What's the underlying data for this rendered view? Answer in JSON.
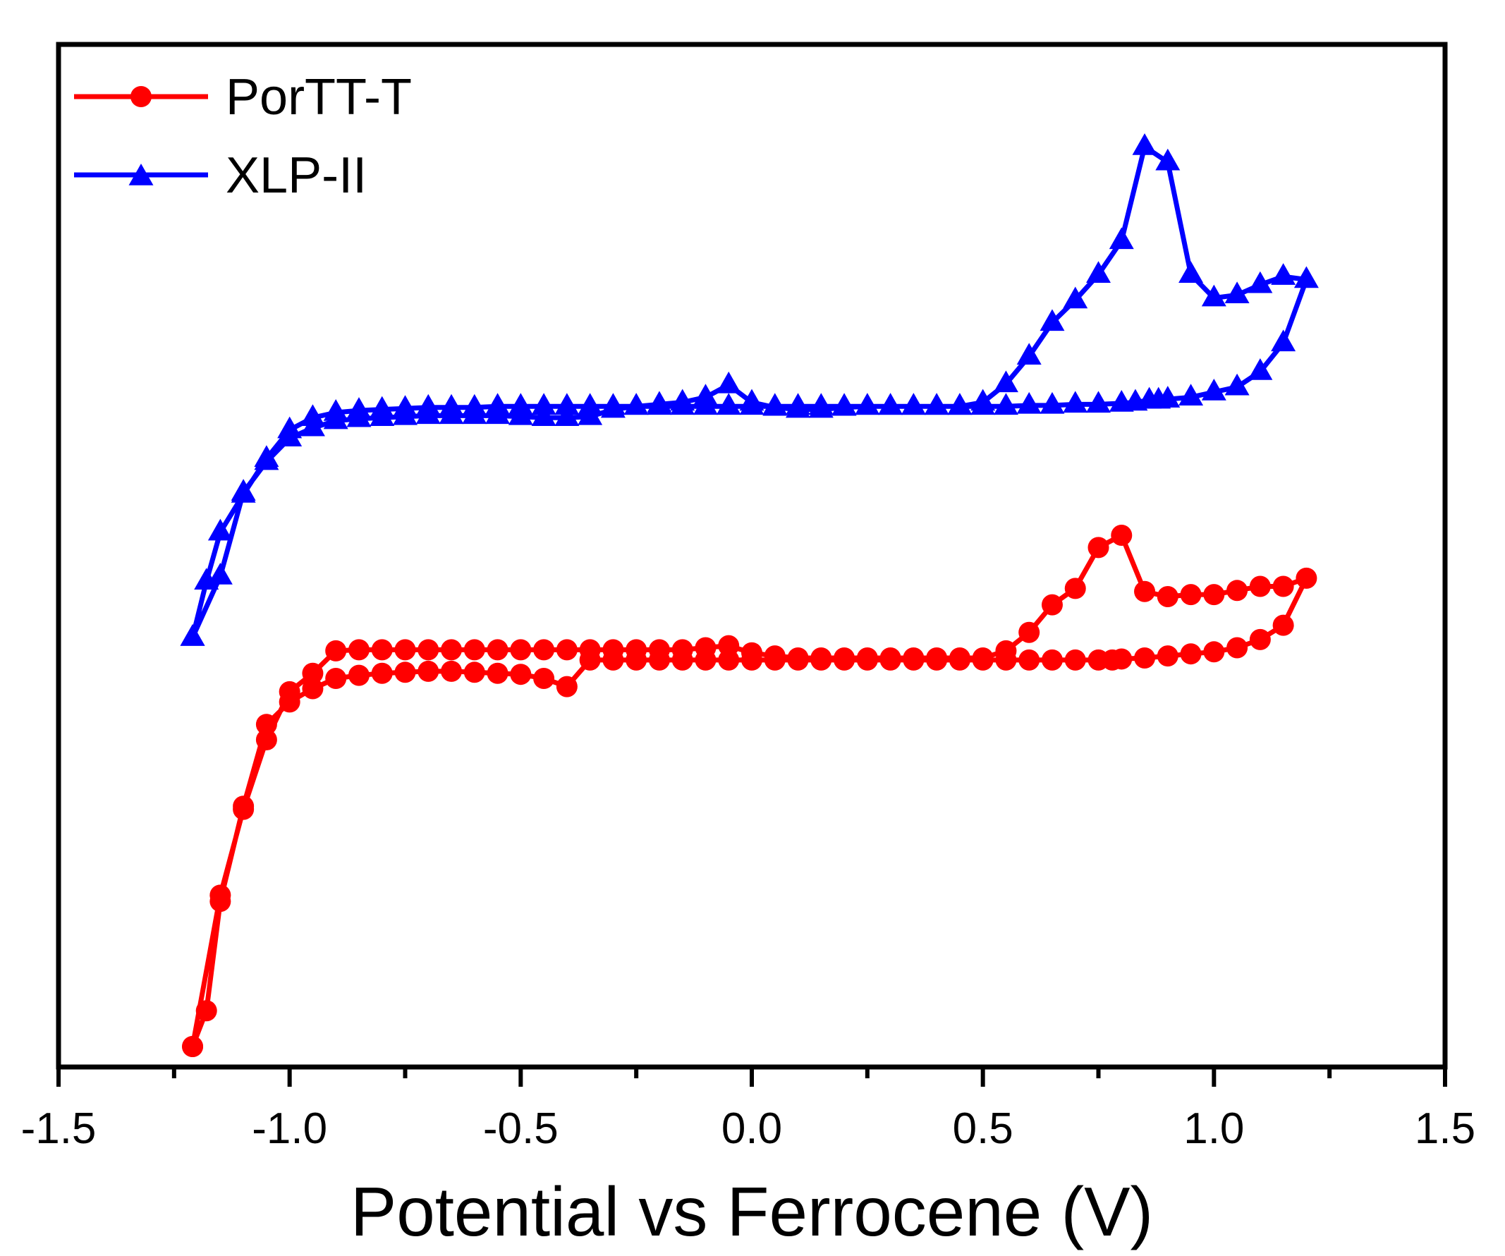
{
  "chart_data": {
    "type": "line",
    "title": "",
    "xlabel": "Potential vs Ferrocene (V)",
    "ylabel": "",
    "xlim": [
      -1.5,
      1.5
    ],
    "ylim": [
      0,
      1
    ],
    "xticks": [
      "-1.5",
      "-1.0",
      "-0.5",
      "0.0",
      "0.5",
      "1.0",
      "1.5"
    ],
    "xtick_values": [
      -1.5,
      -1.0,
      -0.5,
      0.0,
      0.5,
      1.0,
      1.5
    ],
    "minor_xticks": [
      -1.25,
      -0.75,
      -0.25,
      0.25,
      0.75,
      1.25
    ],
    "yticks": [],
    "grid": false,
    "legend_position": "top-left",
    "series": [
      {
        "name": "PorTT-T",
        "color": "#ff0000",
        "marker": "circle",
        "x": [
          -1.21,
          -1.18,
          -1.15,
          -1.1,
          -1.05,
          -1.0,
          -0.95,
          -0.9,
          -0.85,
          -0.8,
          -0.75,
          -0.7,
          -0.65,
          -0.6,
          -0.55,
          -0.5,
          -0.45,
          -0.4,
          -0.35,
          -0.3,
          -0.25,
          -0.2,
          -0.15,
          -0.1,
          -0.05,
          0.0,
          0.05,
          0.1,
          0.15,
          0.2,
          0.25,
          0.3,
          0.35,
          0.4,
          0.45,
          0.5,
          0.55,
          0.6,
          0.65,
          0.7,
          0.75,
          0.78,
          0.8,
          0.85,
          0.9,
          0.95,
          1.0,
          1.05,
          1.1,
          1.15,
          1.2,
          1.15,
          1.1,
          1.05,
          1.0,
          0.95,
          0.9,
          0.85,
          0.8,
          0.75,
          0.7,
          0.65,
          0.6,
          0.55,
          0.5,
          0.45,
          0.4,
          0.35,
          0.3,
          0.25,
          0.2,
          0.15,
          0.1,
          0.05,
          0.0,
          -0.05,
          -0.1,
          -0.15,
          -0.2,
          -0.25,
          -0.3,
          -0.35,
          -0.4,
          -0.45,
          -0.5,
          -0.55,
          -0.6,
          -0.65,
          -0.7,
          -0.75,
          -0.8,
          -0.85,
          -0.9,
          -0.95,
          -1.0,
          -1.05,
          -1.1,
          -1.15,
          -1.21
        ],
        "y": [
          0.02,
          0.055,
          0.162,
          0.255,
          0.335,
          0.357,
          0.37,
          0.38,
          0.383,
          0.385,
          0.386,
          0.387,
          0.387,
          0.386,
          0.385,
          0.384,
          0.38,
          0.372,
          0.398,
          0.398,
          0.398,
          0.398,
          0.398,
          0.398,
          0.398,
          0.398,
          0.398,
          0.398,
          0.398,
          0.398,
          0.398,
          0.398,
          0.398,
          0.398,
          0.398,
          0.398,
          0.398,
          0.398,
          0.398,
          0.398,
          0.398,
          0.398,
          0.399,
          0.4,
          0.402,
          0.404,
          0.406,
          0.41,
          0.418,
          0.432,
          0.478,
          0.47,
          0.47,
          0.466,
          0.462,
          0.462,
          0.46,
          0.465,
          0.52,
          0.508,
          0.468,
          0.452,
          0.425,
          0.407,
          0.4,
          0.4,
          0.4,
          0.4,
          0.4,
          0.4,
          0.4,
          0.4,
          0.4,
          0.402,
          0.405,
          0.412,
          0.41,
          0.408,
          0.408,
          0.408,
          0.408,
          0.408,
          0.408,
          0.408,
          0.408,
          0.408,
          0.408,
          0.408,
          0.408,
          0.408,
          0.408,
          0.408,
          0.407,
          0.385,
          0.367,
          0.32,
          0.252,
          0.168,
          0.02
        ]
      },
      {
        "name": "XLP-II",
        "color": "#0000ff",
        "marker": "triangle",
        "x": [
          -1.21,
          -1.18,
          -1.15,
          -1.1,
          -1.05,
          -1.0,
          -0.95,
          -0.9,
          -0.85,
          -0.8,
          -0.75,
          -0.7,
          -0.65,
          -0.6,
          -0.55,
          -0.5,
          -0.45,
          -0.4,
          -0.35,
          -0.3,
          -0.25,
          -0.2,
          -0.15,
          -0.1,
          -0.05,
          0.0,
          0.05,
          0.1,
          0.15,
          0.2,
          0.25,
          0.3,
          0.35,
          0.4,
          0.45,
          0.5,
          0.55,
          0.6,
          0.65,
          0.7,
          0.75,
          0.8,
          0.83,
          0.86,
          0.88,
          0.9,
          0.95,
          1.0,
          1.05,
          1.1,
          1.15,
          1.2,
          1.15,
          1.1,
          1.05,
          1.0,
          0.95,
          0.9,
          0.85,
          0.8,
          0.75,
          0.7,
          0.65,
          0.6,
          0.55,
          0.5,
          0.45,
          0.4,
          0.35,
          0.3,
          0.25,
          0.2,
          0.15,
          0.1,
          0.05,
          0.0,
          -0.05,
          -0.1,
          -0.15,
          -0.2,
          -0.25,
          -0.3,
          -0.35,
          -0.4,
          -0.45,
          -0.5,
          -0.55,
          -0.6,
          -0.65,
          -0.7,
          -0.75,
          -0.8,
          -0.85,
          -0.9,
          -0.95,
          -1.0,
          -1.05,
          -1.1,
          -1.15,
          -1.21
        ],
        "y": [
          0.42,
          0.475,
          0.523,
          0.56,
          0.595,
          0.623,
          0.635,
          0.64,
          0.642,
          0.643,
          0.644,
          0.645,
          0.645,
          0.645,
          0.646,
          0.646,
          0.646,
          0.646,
          0.646,
          0.646,
          0.646,
          0.646,
          0.646,
          0.646,
          0.646,
          0.646,
          0.646,
          0.646,
          0.646,
          0.646,
          0.646,
          0.646,
          0.646,
          0.646,
          0.646,
          0.646,
          0.646,
          0.647,
          0.647,
          0.648,
          0.648,
          0.649,
          0.65,
          0.652,
          0.652,
          0.653,
          0.655,
          0.66,
          0.665,
          0.68,
          0.708,
          0.77,
          0.773,
          0.765,
          0.755,
          0.752,
          0.775,
          0.885,
          0.9,
          0.808,
          0.775,
          0.75,
          0.728,
          0.695,
          0.668,
          0.65,
          0.646,
          0.646,
          0.646,
          0.646,
          0.646,
          0.645,
          0.643,
          0.643,
          0.645,
          0.65,
          0.667,
          0.655,
          0.65,
          0.648,
          0.646,
          0.643,
          0.636,
          0.635,
          0.635,
          0.636,
          0.637,
          0.637,
          0.637,
          0.637,
          0.636,
          0.635,
          0.634,
          0.632,
          0.625,
          0.615,
          0.592,
          0.562,
          0.48,
          0.42
        ]
      }
    ]
  }
}
